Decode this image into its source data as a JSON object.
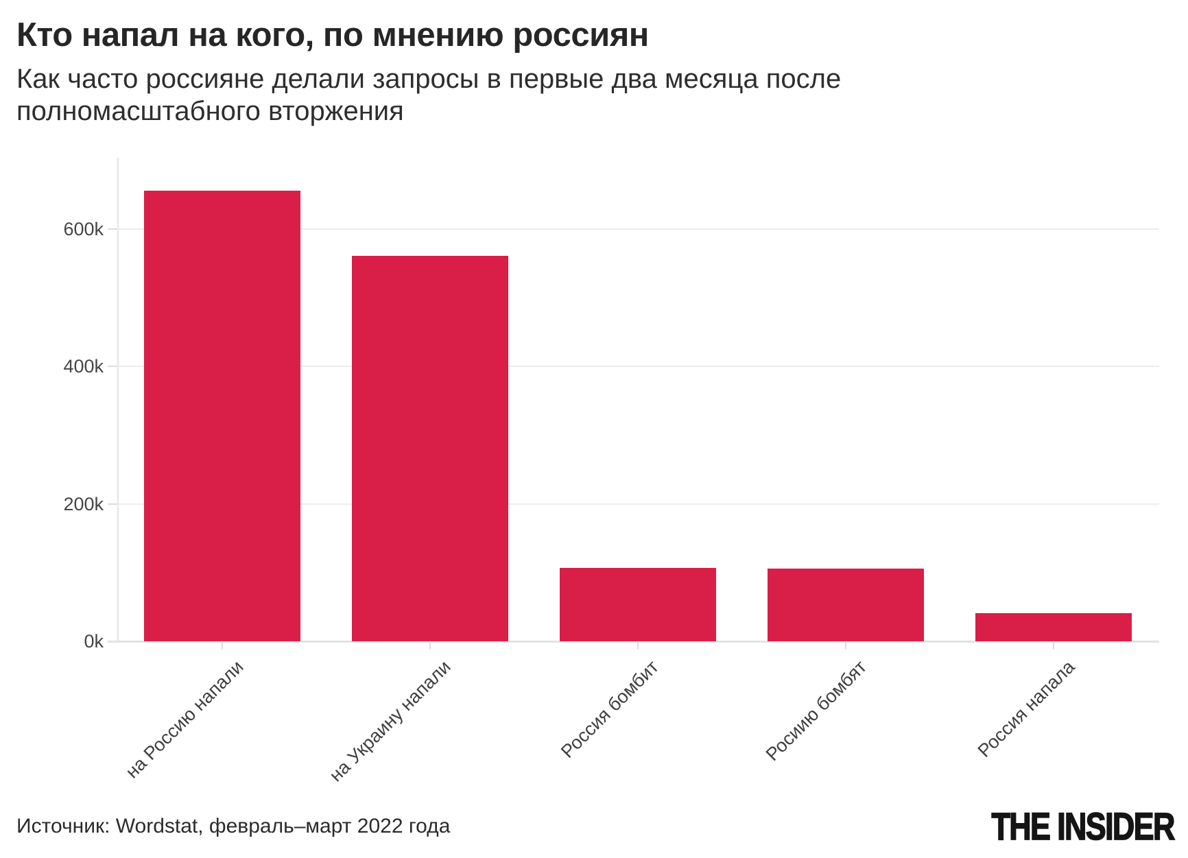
{
  "header": {
    "title": "Кто напал на кого, по мнению россиян",
    "subtitle": "Как часто россияне делали запросы в первые два месяца после полномасштабного вторжения"
  },
  "chart_data": {
    "type": "bar",
    "title": "Кто напал на кого, по мнению россиян",
    "subtitle": "Как часто россияне делали запросы в первые два месяца после полномасштабного вторжения",
    "categories": [
      "на Россию напали",
      "на Украину напали",
      "Россия бомбит",
      "Росиию бомбят",
      "Россия напала"
    ],
    "values": [
      656000,
      561000,
      107000,
      106000,
      41000
    ],
    "xlabel": "",
    "ylabel": "",
    "ylim": [
      0,
      704000
    ],
    "yticks": [
      {
        "value": 0,
        "label": "0k"
      },
      {
        "value": 200000,
        "label": "200k"
      },
      {
        "value": 400000,
        "label": "400k"
      },
      {
        "value": 600000,
        "label": "600k"
      }
    ],
    "grid": "horizontal",
    "legend": "none",
    "bar_color": "#d91e48"
  },
  "footer": {
    "source": "Источник: Wordstat, февраль–март 2022 года",
    "logo": "THE INSIDER"
  },
  "colors": {
    "bar": "#d91e48",
    "grid": "#ececec",
    "axis": "#e2e2e2",
    "title_text": "#262626",
    "tick_text": "#454545"
  }
}
